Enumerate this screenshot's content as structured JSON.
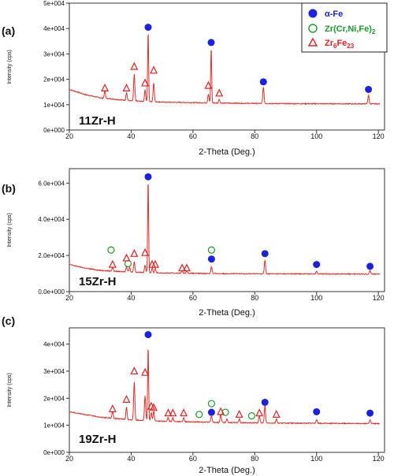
{
  "legend": {
    "items": [
      {
        "marker": "circle-filled",
        "label": "α-Fe",
        "color": "#1a22e0"
      },
      {
        "marker": "circle-open",
        "label": "Zr(Cr,Ni,Fe)",
        "sub": "2",
        "color": "#1a9a2a"
      },
      {
        "marker": "triangle-open",
        "label": "Zr",
        "sub": "6",
        "label2": "Fe",
        "sub2": "23",
        "color": "#e02020"
      }
    ]
  },
  "colors": {
    "pattern": "#e0302a",
    "alpha_fe": "#1a22e0",
    "zr_cr_ni_fe": "#1a9a2a",
    "zr6fe23": "#e02020"
  },
  "chart_data": [
    {
      "type": "line",
      "panel_label": "(a)",
      "sample": "11Zr-H",
      "xlabel": "2-Theta (Deg.)",
      "ylabel": "Intensity (cps)",
      "xlim": [
        20,
        122
      ],
      "ylim": [
        0,
        50000
      ],
      "x_ticks": [
        "20",
        "40",
        "60",
        "80",
        "100",
        "120"
      ],
      "y_ticks": [
        {
          "v": 0,
          "label": "0e+000"
        },
        {
          "v": 10000,
          "label": "1e+004"
        },
        {
          "v": 20000,
          "label": "2e+004"
        },
        {
          "v": 30000,
          "label": "3e+004"
        },
        {
          "v": 40000,
          "label": "4e+004"
        },
        {
          "v": 50000,
          "label": "5e+004"
        }
      ],
      "baseline": [
        [
          20,
          16000
        ],
        [
          25,
          14000
        ],
        [
          30,
          12700
        ],
        [
          40,
          11500
        ],
        [
          50,
          11000
        ],
        [
          70,
          10600
        ],
        [
          90,
          10400
        ],
        [
          122,
          10300
        ]
      ],
      "peaks": [
        [
          31.5,
          3000
        ],
        [
          38.5,
          3200
        ],
        [
          41,
          10500
        ],
        [
          44.5,
          4500
        ],
        [
          45.5,
          28000
        ],
        [
          47.3,
          7500
        ],
        [
          65,
          3500
        ],
        [
          65.9,
          22000
        ],
        [
          68.5,
          1500
        ],
        [
          82.8,
          6500
        ],
        [
          116.8,
          3500
        ]
      ],
      "markers": {
        "alpha_fe": [
          [
            45.5,
            40500
          ],
          [
            65.9,
            34500
          ],
          [
            82.8,
            19000
          ],
          [
            116.8,
            16000
          ]
        ],
        "zr_cr_ni_fe": [],
        "zr6fe23": [
          [
            31.5,
            16500
          ],
          [
            38.5,
            16500
          ],
          [
            41,
            25000
          ],
          [
            44.5,
            18500
          ],
          [
            47.3,
            23500
          ],
          [
            65,
            17500
          ],
          [
            68.5,
            14500
          ]
        ]
      }
    },
    {
      "type": "line",
      "panel_label": "(b)",
      "sample": "15Zr-H",
      "xlabel": "2-Theta (Deg.)",
      "ylabel": "Intensity (cps)",
      "xlim": [
        20,
        122
      ],
      "ylim": [
        0,
        68000
      ],
      "x_ticks": [
        "20",
        "40",
        "60",
        "80",
        "100",
        "120"
      ],
      "y_ticks": [
        {
          "v": 0,
          "label": "0.0e+000"
        },
        {
          "v": 20000,
          "label": "2.0e+004"
        },
        {
          "v": 40000,
          "label": "4.0e+004"
        },
        {
          "v": 60000,
          "label": "6.0e+004"
        }
      ],
      "baseline": [
        [
          20,
          15000
        ],
        [
          25,
          13000
        ],
        [
          30,
          11700
        ],
        [
          40,
          10800
        ],
        [
          50,
          10300
        ],
        [
          70,
          9900
        ],
        [
          90,
          9800
        ],
        [
          122,
          9700
        ]
      ],
      "peaks": [
        [
          34,
          2000
        ],
        [
          38.5,
          3000
        ],
        [
          39.5,
          2500
        ],
        [
          41,
          6000
        ],
        [
          44.5,
          4000
        ],
        [
          45.5,
          52000
        ],
        [
          46.8,
          2500
        ],
        [
          47.8,
          2500
        ],
        [
          56.5,
          1500
        ],
        [
          58,
          1500
        ],
        [
          66,
          4000
        ],
        [
          83.3,
          7500
        ],
        [
          100,
          1500
        ],
        [
          117.3,
          2000
        ]
      ],
      "markers": {
        "alpha_fe": [
          [
            45.5,
            63500
          ],
          [
            66,
            18000
          ],
          [
            83.3,
            21000
          ],
          [
            100,
            15000
          ],
          [
            117.3,
            14000
          ]
        ],
        "zr_cr_ni_fe": [
          [
            33.5,
            23000
          ],
          [
            39,
            15500
          ],
          [
            66,
            23000
          ]
        ],
        "zr6fe23": [
          [
            34,
            15000
          ],
          [
            38.5,
            18500
          ],
          [
            41,
            21000
          ],
          [
            44.5,
            21500
          ],
          [
            46.8,
            15000
          ],
          [
            47.8,
            15000
          ],
          [
            56.5,
            13000
          ],
          [
            58,
            13000
          ]
        ]
      }
    },
    {
      "type": "line",
      "panel_label": "(c)",
      "sample": "19Zr-H",
      "xlabel": "2-Theta (Deg.)",
      "ylabel": "Intensity (cps)",
      "xlim": [
        20,
        122
      ],
      "ylim": [
        0,
        46000
      ],
      "x_ticks": [
        "20",
        "40",
        "60",
        "80",
        "100",
        "120"
      ],
      "y_ticks": [
        {
          "v": 0,
          "label": "0e+000"
        },
        {
          "v": 10000,
          "label": "1e+004"
        },
        {
          "v": 20000,
          "label": "2e+004"
        },
        {
          "v": 30000,
          "label": "3e+004"
        },
        {
          "v": 40000,
          "label": "4e+004"
        }
      ],
      "baseline": [
        [
          20,
          15000
        ],
        [
          25,
          14000
        ],
        [
          30,
          13000
        ],
        [
          40,
          12000
        ],
        [
          50,
          11500
        ],
        [
          70,
          11000
        ],
        [
          90,
          10800
        ],
        [
          122,
          10600
        ]
      ],
      "peaks": [
        [
          34,
          2500
        ],
        [
          38.5,
          4500
        ],
        [
          41,
          14000
        ],
        [
          44.5,
          9000
        ],
        [
          45.5,
          28000
        ],
        [
          46.5,
          3000
        ],
        [
          47.3,
          3500
        ],
        [
          52,
          1500
        ],
        [
          53.5,
          1500
        ],
        [
          57,
          1500
        ],
        [
          66,
          2500
        ],
        [
          69,
          3000
        ],
        [
          71,
          1500
        ],
        [
          75,
          1500
        ],
        [
          81.5,
          2500
        ],
        [
          83.3,
          6500
        ],
        [
          87,
          1500
        ],
        [
          100,
          1500
        ],
        [
          117.3,
          1500
        ]
      ],
      "markers": {
        "alpha_fe": [
          [
            45.5,
            43500
          ],
          [
            66,
            14800
          ],
          [
            83.3,
            18500
          ],
          [
            100,
            15000
          ],
          [
            117.3,
            14500
          ]
        ],
        "zr_cr_ni_fe": [
          [
            62,
            14000
          ],
          [
            66,
            18000
          ],
          [
            70.5,
            14800
          ],
          [
            79,
            13500
          ]
        ],
        "zr6fe23": [
          [
            34,
            16000
          ],
          [
            38.5,
            19500
          ],
          [
            41,
            30000
          ],
          [
            44.5,
            29500
          ],
          [
            46.5,
            17000
          ],
          [
            47.3,
            16500
          ],
          [
            52,
            14500
          ],
          [
            53.5,
            14500
          ],
          [
            57,
            14500
          ],
          [
            69,
            15000
          ],
          [
            75,
            14000
          ],
          [
            81.5,
            14500
          ],
          [
            87,
            14000
          ]
        ]
      }
    }
  ]
}
